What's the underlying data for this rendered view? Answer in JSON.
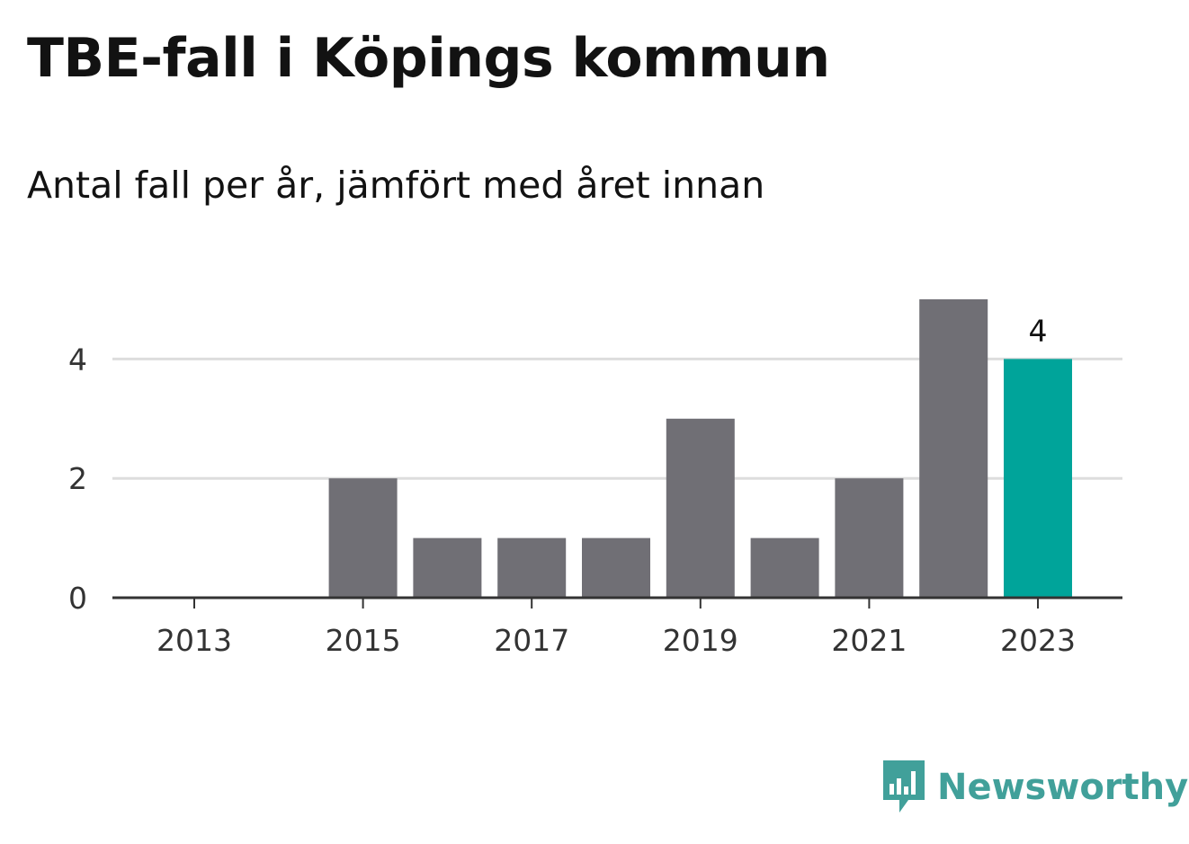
{
  "title": "TBE-fall i Köpings kommun",
  "subtitle": "Antal fall per år, jämfört med året innan",
  "brand": {
    "name": "Newsworthy",
    "icon": "newsworthy-logo-icon",
    "color": "#41a09a"
  },
  "colors": {
    "bar": "#706f75",
    "highlight": "#00a49a",
    "grid": "#dddddd",
    "axis": "#333333"
  },
  "chart_data": {
    "type": "bar",
    "categories": [
      "2013",
      "2014",
      "2015",
      "2016",
      "2017",
      "2018",
      "2019",
      "2020",
      "2021",
      "2022",
      "2023"
    ],
    "values": [
      0,
      0,
      2,
      1,
      1,
      1,
      3,
      1,
      2,
      5,
      4
    ],
    "highlight_category": "2023",
    "x_tick_labels": [
      "2013",
      "2015",
      "2017",
      "2019",
      "2021",
      "2023"
    ],
    "y_ticks": [
      0,
      2,
      4
    ],
    "ylim": [
      0,
      5
    ],
    "data_labels": [
      {
        "category": "2023",
        "text": "4"
      }
    ],
    "grid": true,
    "legend": "none",
    "title": "TBE-fall i Köpings kommun",
    "subtitle": "Antal fall per år, jämfört med året innan",
    "xlabel": "",
    "ylabel": ""
  }
}
